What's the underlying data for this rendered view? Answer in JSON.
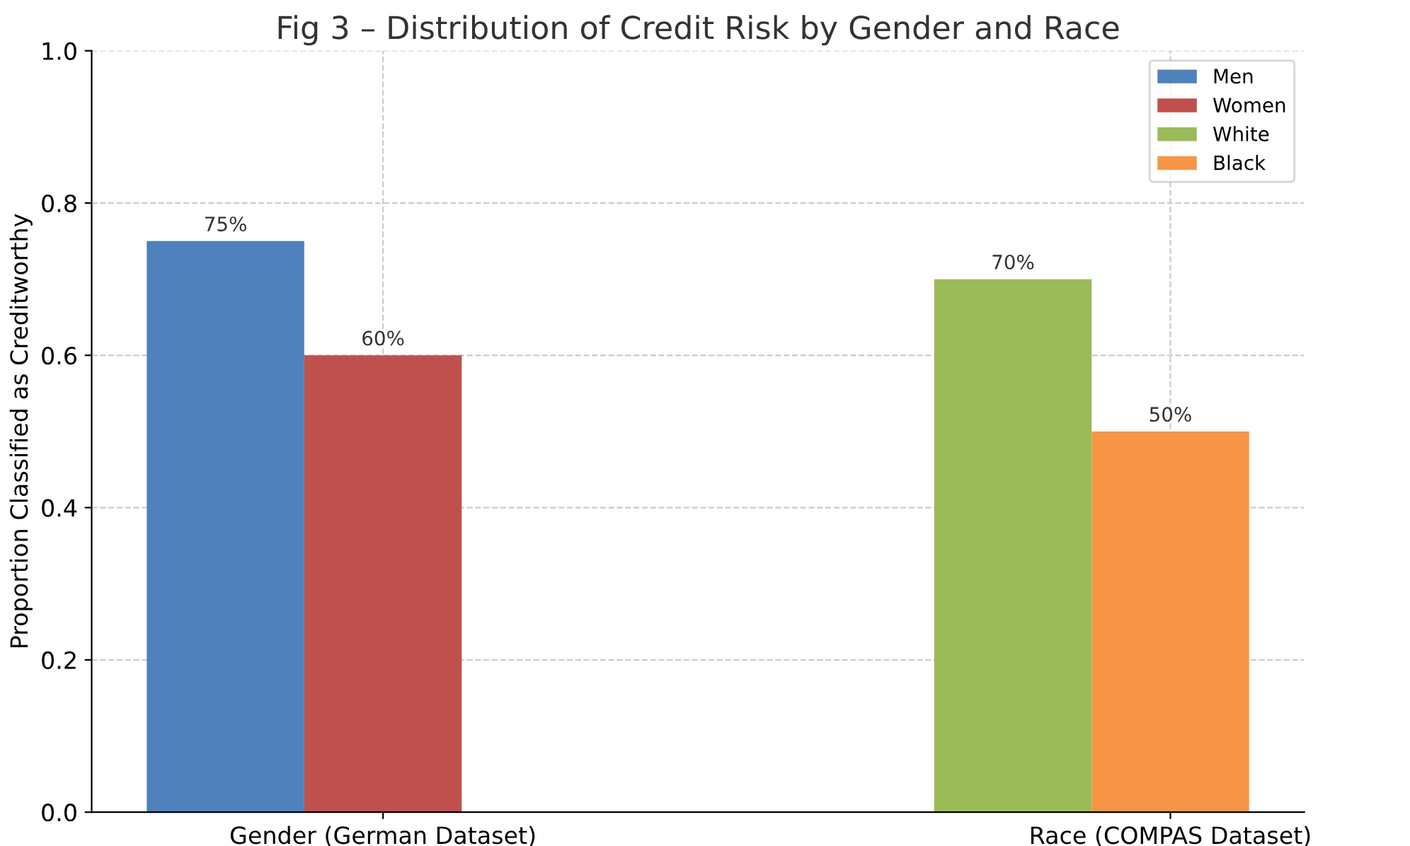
{
  "chart_data": {
    "type": "bar",
    "title": "Fig 3 – Distribution of Credit Risk by Gender and Race",
    "ylabel": "Proportion Classified as Creditworthy",
    "categories": [
      "Gender (German Dataset)",
      "Race (COMPAS Dataset)"
    ],
    "series": [
      {
        "name": "Men",
        "color": "#4f81bd",
        "values": [
          0.75,
          null
        ],
        "value_labels": [
          "75%",
          null
        ]
      },
      {
        "name": "Women",
        "color": "#c0504d",
        "values": [
          0.6,
          null
        ],
        "value_labels": [
          "60%",
          null
        ]
      },
      {
        "name": "White",
        "color": "#9bbb59",
        "values": [
          null,
          0.7
        ],
        "value_labels": [
          null,
          "70%"
        ]
      },
      {
        "name": "Black",
        "color": "#f79646",
        "values": [
          null,
          0.5
        ],
        "value_labels": [
          null,
          "50%"
        ]
      }
    ],
    "ylim": [
      0,
      1
    ],
    "yticks": [
      {
        "value": 0,
        "label": "0.0"
      },
      {
        "value": 0.2,
        "label": "0.2"
      },
      {
        "value": 0.4,
        "label": "0.4"
      },
      {
        "value": 0.6,
        "label": "0.6"
      },
      {
        "value": 0.8,
        "label": "0.8"
      },
      {
        "value": 1,
        "label": "1.0"
      }
    ],
    "grid": true,
    "legend": "top right"
  }
}
